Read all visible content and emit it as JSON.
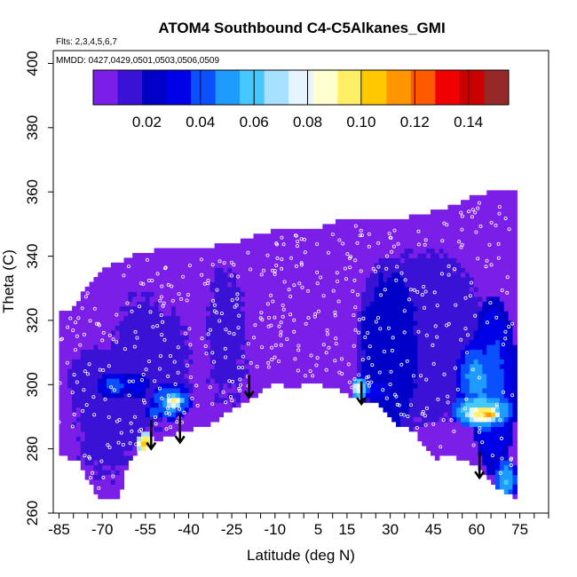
{
  "chart_data": {
    "type": "heatmap",
    "title": "ATOM4 Southbound C4-C5Alkanes_GMI",
    "flights_note": "Flts: 2,3,4,5,6,7",
    "dates_note": "MMDD: 0427,0429,0501,0503,0506,0509",
    "xlabel": "Latitude (deg N)",
    "ylabel": "Theta (C)",
    "xlim": [
      -87,
      85
    ],
    "ylim": [
      260,
      404
    ],
    "x_ticks": [
      -85,
      -70,
      -55,
      -40,
      -25,
      -10,
      5,
      15,
      30,
      45,
      60,
      75
    ],
    "x_minor_tick_step": 5,
    "y_ticks": [
      260,
      280,
      300,
      320,
      340,
      360,
      380,
      400
    ],
    "colorbar": {
      "min": 0.0,
      "max": 0.155,
      "ticks": [
        0.02,
        0.04,
        0.06,
        0.08,
        0.1,
        0.12,
        0.14
      ],
      "tick_labels": [
        "0.02",
        "0.04",
        "0.06",
        "0.08",
        "0.10",
        "0.12",
        "0.14"
      ],
      "colors": [
        "#7b1ee8",
        "#3a12d6",
        "#0000c8",
        "#0000e8",
        "#0a50ff",
        "#1e9bff",
        "#46c8ff",
        "#a8e0ff",
        "#e6f4ff",
        "#ffffd0",
        "#ffef66",
        "#ffc800",
        "#ff9600",
        "#ff5a00",
        "#f00000",
        "#c80000",
        "#962828"
      ],
      "legend_position": "top"
    },
    "domain_top": [
      [
        -85,
        322
      ],
      [
        -80,
        324
      ],
      [
        -75,
        331
      ],
      [
        -70,
        336
      ],
      [
        -60,
        340
      ],
      [
        -50,
        342
      ],
      [
        -40,
        343
      ],
      [
        -32,
        343
      ],
      [
        -25,
        344
      ],
      [
        -18,
        346
      ],
      [
        -10,
        348
      ],
      [
        -2,
        349
      ],
      [
        5,
        349
      ],
      [
        12,
        351
      ],
      [
        22,
        352
      ],
      [
        30,
        351
      ],
      [
        40,
        353
      ],
      [
        50,
        355
      ],
      [
        57,
        358
      ],
      [
        62,
        359
      ],
      [
        65,
        360
      ],
      [
        68,
        360
      ]
    ],
    "domain_bottom": [
      [
        -85,
        278
      ],
      [
        -78,
        276
      ],
      [
        -73,
        267
      ],
      [
        -70,
        264
      ],
      [
        -64,
        265
      ],
      [
        -61,
        276
      ],
      [
        -56,
        280
      ],
      [
        -48,
        284
      ],
      [
        -40,
        286
      ],
      [
        -32,
        288
      ],
      [
        -24,
        293
      ],
      [
        -16,
        297
      ],
      [
        -10,
        301
      ],
      [
        -5,
        299
      ],
      [
        0,
        300
      ],
      [
        5,
        300
      ],
      [
        10,
        299
      ],
      [
        15,
        297
      ],
      [
        20,
        295
      ],
      [
        25,
        294
      ],
      [
        32,
        288
      ],
      [
        38,
        286
      ],
      [
        45,
        277
      ],
      [
        50,
        278
      ],
      [
        55,
        277
      ],
      [
        60,
        275
      ],
      [
        65,
        270
      ],
      [
        70,
        266
      ],
      [
        73,
        265
      ]
    ],
    "blobs": [
      {
        "lat": -10,
        "theta": 330,
        "rx": 75,
        "ry": 35,
        "value": 0.0
      },
      {
        "lat": -68,
        "theta": 290,
        "rx": 14,
        "ry": 22,
        "value": 0.013
      },
      {
        "lat": -56,
        "theta": 306,
        "rx": 12,
        "ry": 25,
        "value": 0.014
      },
      {
        "lat": -47,
        "theta": 306,
        "rx": 9,
        "ry": 20,
        "value": 0.013
      },
      {
        "lat": -27,
        "theta": 315,
        "rx": 9,
        "ry": 28,
        "value": 0.012
      },
      {
        "lat": -72,
        "theta": 300,
        "rx": 10,
        "ry": 12,
        "value": 0.016
      },
      {
        "lat": 42,
        "theta": 315,
        "rx": 22,
        "ry": 28,
        "value": 0.016
      },
      {
        "lat": 30,
        "theta": 310,
        "rx": 12,
        "ry": 30,
        "value": 0.026
      },
      {
        "lat": 66,
        "theta": 300,
        "rx": 8,
        "ry": 28,
        "value": 0.04
      },
      {
        "lat": 60,
        "theta": 302,
        "rx": 7,
        "ry": 12,
        "value": 0.05
      },
      {
        "lat": -46,
        "theta": 295,
        "rx": 7,
        "ry": 6,
        "value": 0.05
      },
      {
        "lat": -45,
        "theta": 295,
        "rx": 3,
        "ry": 2,
        "value": 0.095
      },
      {
        "lat": -52,
        "theta": 292,
        "rx": 3,
        "ry": 2,
        "value": 0.045
      },
      {
        "lat": -55,
        "theta": 282,
        "rx": 3,
        "ry": 3,
        "value": 0.11
      },
      {
        "lat": -66,
        "theta": 300,
        "rx": 6,
        "ry": 4,
        "value": 0.04
      },
      {
        "lat": -58,
        "theta": 300,
        "rx": 4,
        "ry": 4,
        "value": 0.035
      },
      {
        "lat": 20,
        "theta": 299,
        "rx": 3,
        "ry": 4,
        "value": 0.06
      },
      {
        "lat": 19,
        "theta": 299,
        "rx": 2,
        "ry": 3,
        "value": 0.082
      },
      {
        "lat": 26,
        "theta": 298,
        "rx": 5,
        "ry": 4,
        "value": 0.035
      },
      {
        "lat": 62,
        "theta": 292,
        "rx": 11,
        "ry": 6,
        "value": 0.065
      },
      {
        "lat": 62,
        "theta": 291,
        "rx": 6,
        "ry": 3,
        "value": 0.1
      },
      {
        "lat": 64,
        "theta": 291,
        "rx": 4,
        "ry": 2,
        "value": 0.112
      },
      {
        "lat": 70,
        "theta": 270,
        "rx": 4,
        "ry": 8,
        "value": 0.055
      }
    ],
    "arrows": [
      {
        "lat": -53,
        "theta_top": 289,
        "theta_tip": 280
      },
      {
        "lat": -43,
        "theta_top": 291,
        "theta_tip": 282
      },
      {
        "lat": -19,
        "theta_top": 303,
        "theta_tip": 296
      },
      {
        "lat": 20,
        "theta_top": 301,
        "theta_tip": 294
      },
      {
        "lat": 61,
        "theta_top": 279,
        "theta_tip": 271
      }
    ]
  }
}
